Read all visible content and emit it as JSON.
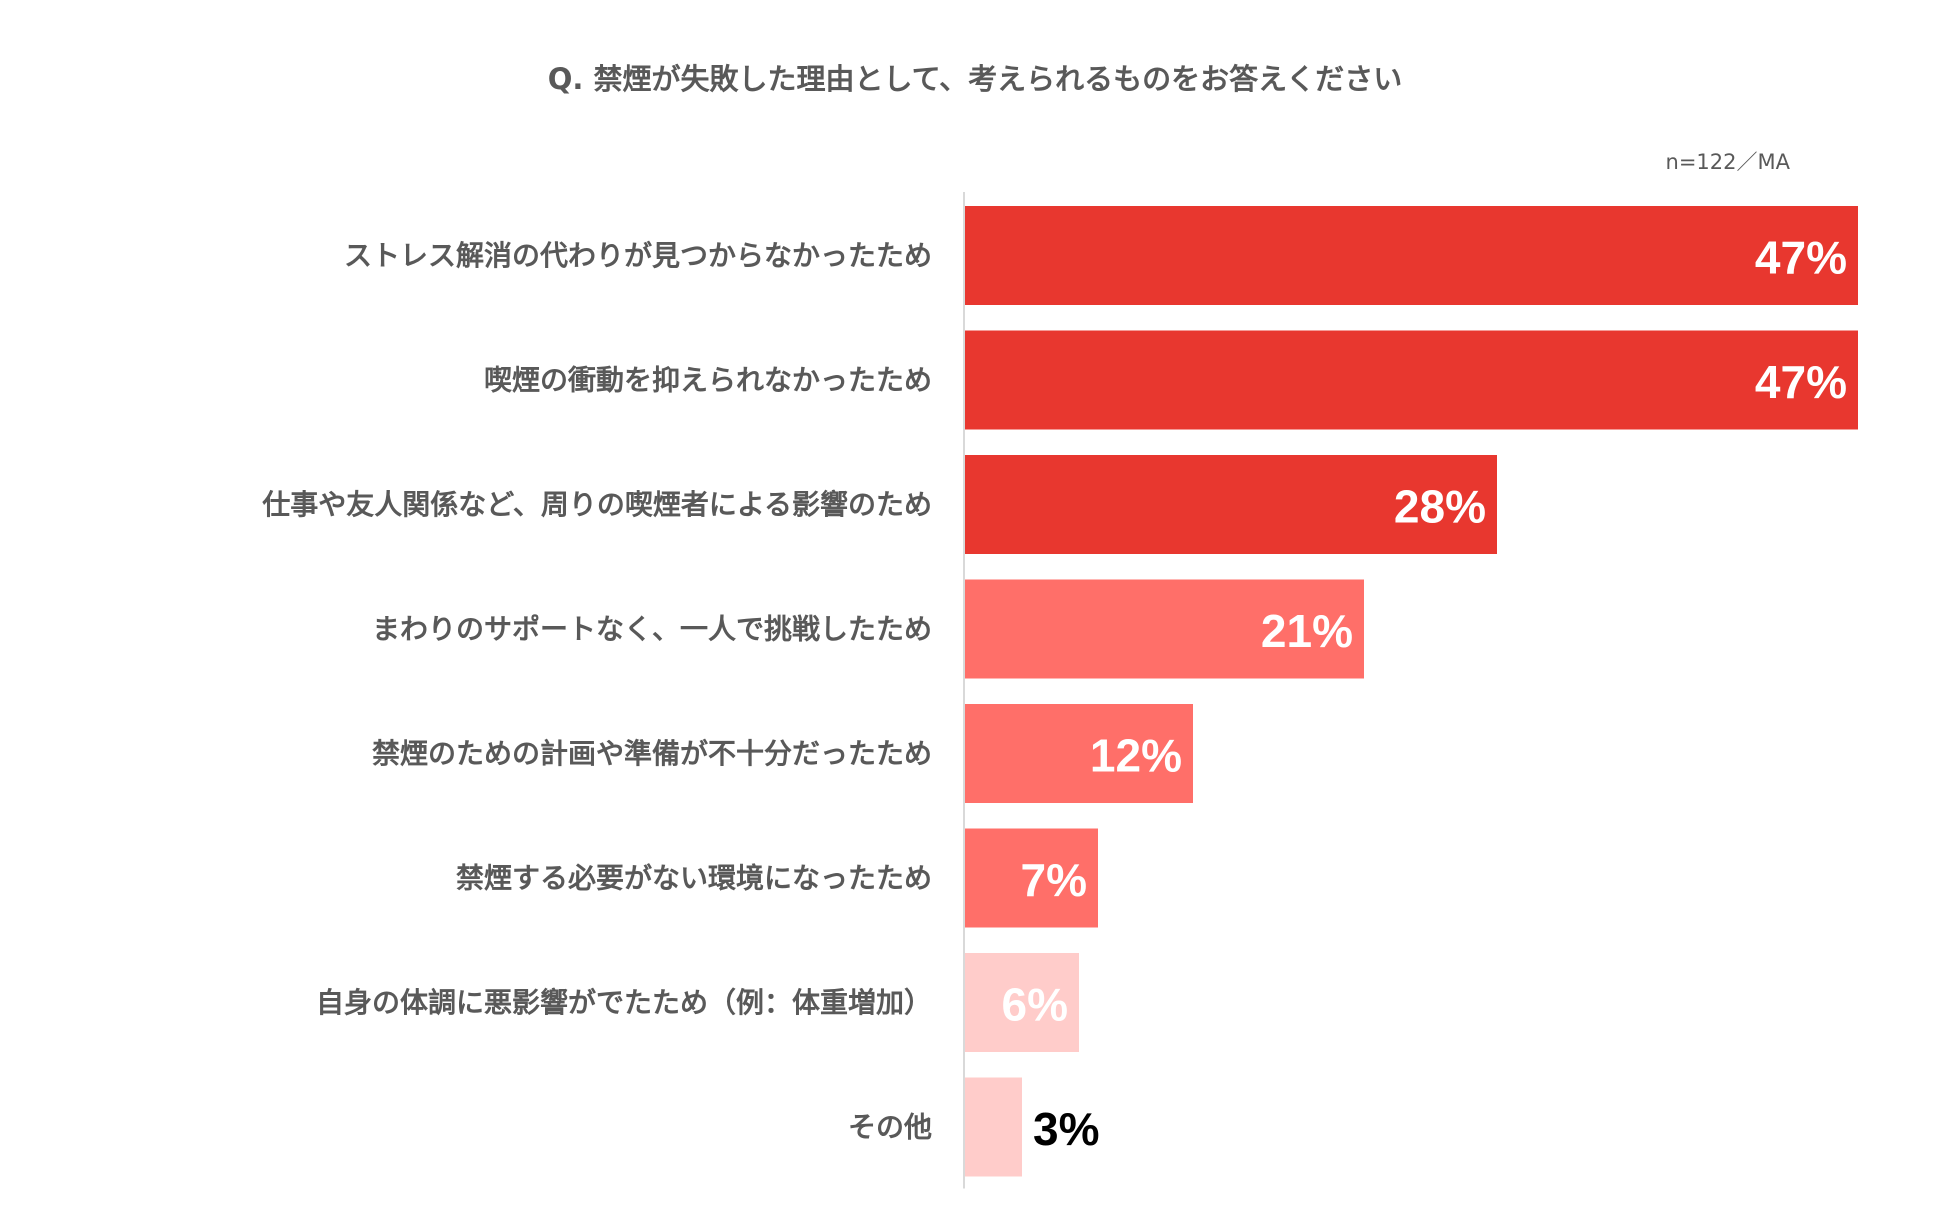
{
  "title": "Q.  禁煙が失敗した理由として、考えられるものをお答えください",
  "sample_note": "n=122／MA",
  "colors": {
    "dark_red": "#E8372F",
    "mid_red": "#FF6F69",
    "light_red": "#FFCCCA",
    "axis": "#D9D9D9",
    "label_white": "#FFFFFF",
    "label_black": "#000000"
  },
  "chart_data": {
    "type": "bar",
    "orientation": "horizontal",
    "title": "Q.  禁煙が失敗した理由として、考えられるものをお答えください",
    "categories": [
      "ストレス解消の代わりが見つからなかったため",
      "喫煙の衝動を抑えられなかったため",
      "仕事や友人関係など、周りの喫煙者による影響のため",
      "まわりのサポートなく、一人で挑戦したため",
      "禁煙のための計画や準備が不十分だったため",
      "禁煙する必要がない環境になったため",
      "自身の体調に悪影響がでたため（例：体重増加）",
      "その他"
    ],
    "values": [
      47,
      47,
      28,
      21,
      12,
      7,
      6,
      3
    ],
    "value_labels": [
      "47%",
      "47%",
      "28%",
      "21%",
      "12%",
      "7%",
      "6%",
      "3%"
    ],
    "bar_colors": [
      "dark_red",
      "dark_red",
      "dark_red",
      "mid_red",
      "mid_red",
      "mid_red",
      "light_red",
      "light_red"
    ],
    "label_colors": [
      "label_white",
      "label_white",
      "label_white",
      "label_white",
      "label_white",
      "label_white",
      "label_white",
      "label_black"
    ],
    "xlim": [
      0,
      47
    ],
    "grid": false,
    "legend": "none"
  }
}
